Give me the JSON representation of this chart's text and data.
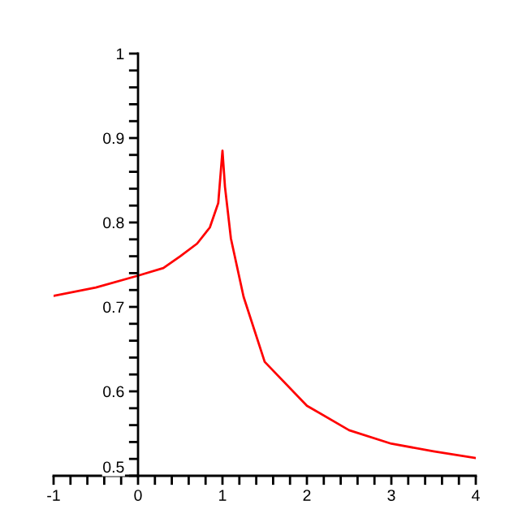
{
  "chart_data": {
    "type": "line",
    "x": [
      -1,
      -0.5,
      0,
      0.3,
      0.5,
      0.7,
      0.85,
      0.95,
      1,
      1.03,
      1.1,
      1.25,
      1.5,
      2,
      2.5,
      3,
      3.5,
      4
    ],
    "series": [
      {
        "color": "#ff0000",
        "values": [
          0.713,
          0.723,
          0.737,
          0.746,
          0.76,
          0.775,
          0.794,
          0.823,
          0.885,
          0.842,
          0.781,
          0.712,
          0.635,
          0.583,
          0.554,
          0.538,
          0.529,
          0.521
        ]
      }
    ],
    "xlim": [
      -1,
      4
    ],
    "ylim": [
      0.5,
      1
    ],
    "xticks": [
      -1,
      {
        "value": -0.8,
        "label": null
      },
      {
        "value": -0.6,
        "label": null
      },
      {
        "value": -0.4,
        "label": null
      },
      {
        "value": -0.2,
        "label": null
      },
      0,
      {
        "value": 0.2,
        "label": null
      },
      {
        "value": 0.4,
        "label": null
      },
      {
        "value": 0.6,
        "label": null
      },
      {
        "value": 0.8,
        "label": null
      },
      1,
      {
        "value": 1.2,
        "label": null
      },
      {
        "value": 1.4,
        "label": null
      },
      {
        "value": 1.6,
        "label": null
      },
      {
        "value": 1.8,
        "label": null
      },
      2,
      {
        "value": 2.2,
        "label": null
      },
      {
        "value": 2.4,
        "label": null
      },
      {
        "value": 2.6,
        "label": null
      },
      {
        "value": 2.8,
        "label": null
      },
      3,
      {
        "value": 3.2,
        "label": null
      },
      {
        "value": 3.4,
        "label": null
      },
      {
        "value": 3.6,
        "label": null
      },
      {
        "value": 3.8,
        "label": null
      },
      4
    ],
    "yticks": [
      0.5,
      {
        "value": 0.52,
        "label": null
      },
      {
        "value": 0.54,
        "label": null
      },
      {
        "value": 0.56,
        "label": null
      },
      {
        "value": 0.58,
        "label": null
      },
      0.6,
      {
        "value": 0.62,
        "label": null
      },
      {
        "value": 0.64,
        "label": null
      },
      {
        "value": 0.66,
        "label": null
      },
      {
        "value": 0.68,
        "label": null
      },
      0.7,
      {
        "value": 0.72,
        "label": null
      },
      {
        "value": 0.74,
        "label": null
      },
      {
        "value": 0.76,
        "label": null
      },
      {
        "value": 0.78,
        "label": null
      },
      0.8,
      {
        "value": 0.82,
        "label": null
      },
      {
        "value": 0.84,
        "label": null
      },
      {
        "value": 0.86,
        "label": null
      },
      {
        "value": 0.88,
        "label": null
      },
      0.9,
      {
        "value": 0.92,
        "label": null
      },
      {
        "value": 0.94,
        "label": null
      },
      {
        "value": 0.96,
        "label": null
      },
      {
        "value": 0.98,
        "label": null
      },
      1
    ],
    "grid": false,
    "legend": false,
    "marker": "none",
    "line_style": "solid"
  }
}
